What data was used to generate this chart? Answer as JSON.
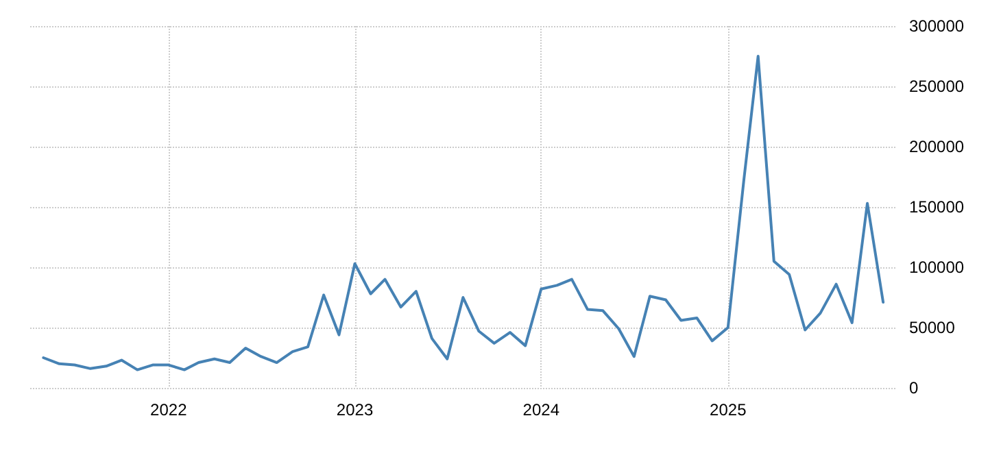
{
  "chart_data": {
    "type": "line",
    "x": [
      "2021-05",
      "2021-06",
      "2021-07",
      "2021-08",
      "2021-09",
      "2021-10",
      "2021-11",
      "2021-12",
      "2022-01",
      "2022-02",
      "2022-03",
      "2022-04",
      "2022-05",
      "2022-06",
      "2022-07",
      "2022-08",
      "2022-09",
      "2022-10",
      "2022-11",
      "2022-12",
      "2023-01",
      "2023-02",
      "2023-03",
      "2023-04",
      "2023-05",
      "2023-06",
      "2023-07",
      "2023-08",
      "2023-09",
      "2023-10",
      "2023-11",
      "2023-12",
      "2024-01",
      "2024-02",
      "2024-03",
      "2024-04",
      "2024-05",
      "2024-06",
      "2024-07",
      "2024-08",
      "2024-09",
      "2024-10",
      "2024-11",
      "2024-12",
      "2025-01",
      "2025-02",
      "2025-03",
      "2025-04",
      "2025-05",
      "2025-06",
      "2025-07",
      "2025-08",
      "2025-09",
      "2025-10",
      "2025-11"
    ],
    "series": [
      {
        "color": "#4682b4",
        "values": [
          25000,
          20000,
          19000,
          16000,
          18000,
          23000,
          15000,
          19000,
          19000,
          15000,
          21000,
          24000,
          21000,
          33000,
          26000,
          21000,
          30000,
          34000,
          77000,
          44000,
          103000,
          78000,
          90000,
          67000,
          80000,
          41000,
          24000,
          75000,
          47000,
          37000,
          46000,
          35000,
          82000,
          85000,
          90000,
          65000,
          64000,
          49000,
          26000,
          76000,
          73000,
          56000,
          58000,
          39000,
          50000,
          172000,
          275000,
          105000,
          94000,
          48000,
          62000,
          86000,
          54000,
          153000,
          71000
        ]
      }
    ],
    "xlim": [
      "2021-04-05",
      "2025-11-25"
    ],
    "xticks": [
      "2022",
      "2023",
      "2024",
      "2025"
    ],
    "ylim": [
      0,
      300000
    ],
    "yticks": [
      0,
      50000,
      100000,
      150000,
      200000,
      250000,
      300000
    ],
    "grid": true,
    "marker": "none",
    "line_style": "solid"
  }
}
